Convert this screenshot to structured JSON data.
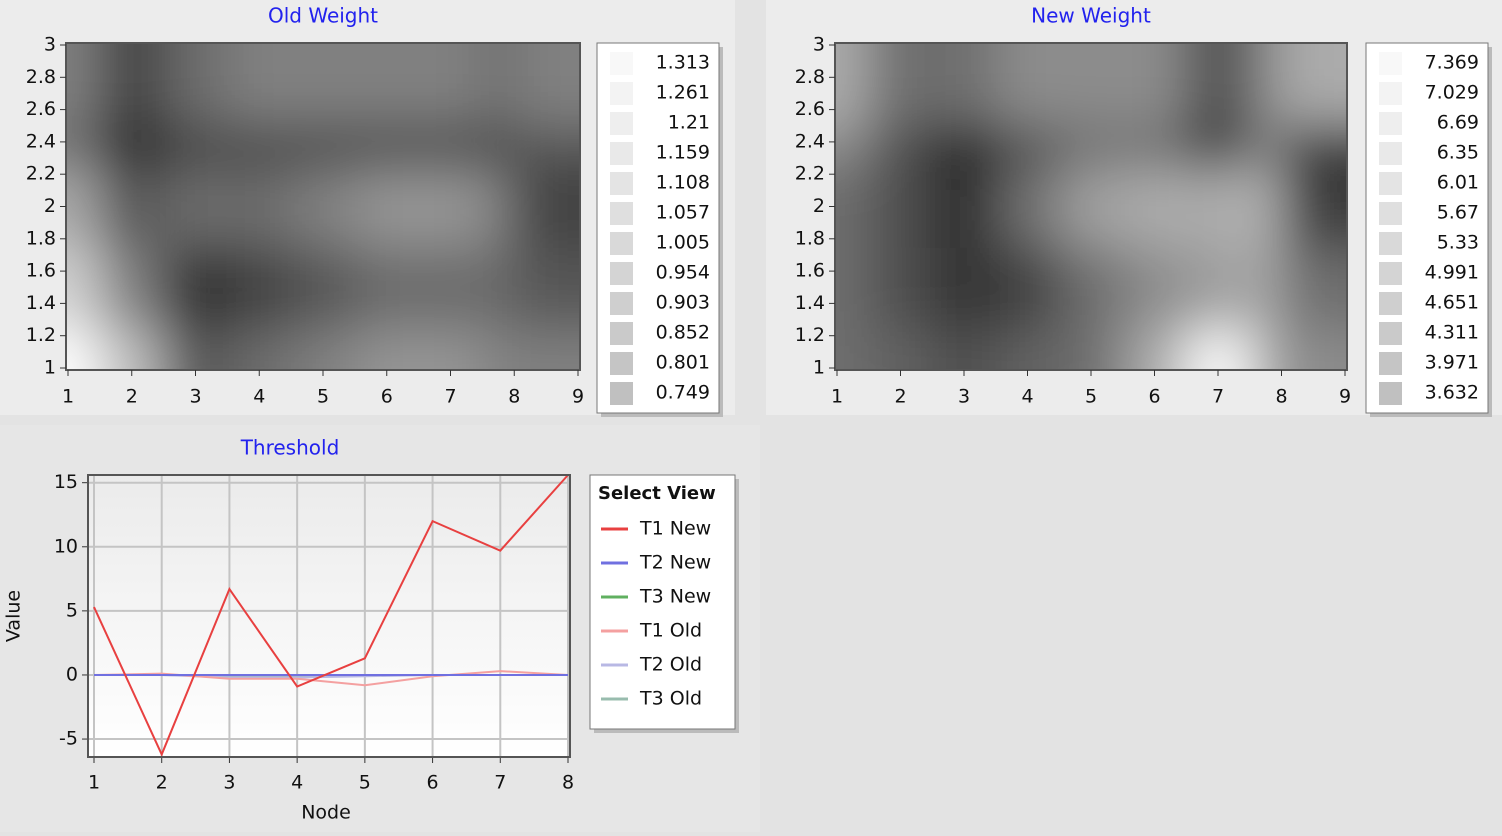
{
  "chart_data": [
    {
      "type": "heatmap",
      "title": "Old Weight",
      "x": [
        1,
        2,
        3,
        4,
        5,
        6,
        7,
        8,
        9
      ],
      "y": [
        1,
        1.5,
        2,
        2.5,
        3
      ],
      "z": [
        [
          1.31,
          1.15,
          0.9,
          0.95,
          1.0,
          1.05,
          1.05,
          1.0,
          1.0
        ],
        [
          1.2,
          1.0,
          0.8,
          0.85,
          0.9,
          0.95,
          0.95,
          0.95,
          0.9
        ],
        [
          1.1,
          0.9,
          0.95,
          0.95,
          1.0,
          1.05,
          1.05,
          1.0,
          0.85
        ],
        [
          0.95,
          0.75,
          0.85,
          0.85,
          0.85,
          0.85,
          0.85,
          0.85,
          0.9
        ],
        [
          1.0,
          0.85,
          0.95,
          1.0,
          1.0,
          1.0,
          1.0,
          0.95,
          1.0
        ]
      ],
      "xlim": [
        1,
        9
      ],
      "ylim": [
        1,
        3
      ],
      "xticks": [
        1,
        2,
        3,
        4,
        5,
        6,
        7,
        8,
        9
      ],
      "yticks": [
        1,
        1.2,
        1.4,
        1.6,
        1.8,
        2,
        2.2,
        2.4,
        2.6,
        2.8,
        3
      ],
      "colors": [
        "#1a1a1a",
        "#ffffff"
      ],
      "legend_levels": [
        1.313,
        1.261,
        1.21,
        1.159,
        1.108,
        1.057,
        1.005,
        0.954,
        0.903,
        0.852,
        0.801,
        0.749
      ]
    },
    {
      "type": "heatmap",
      "title": "New Weight",
      "x": [
        1,
        2,
        3,
        4,
        5,
        6,
        7,
        8,
        9
      ],
      "y": [
        1,
        1.5,
        2,
        2.5,
        3
      ],
      "z": [
        [
          5.0,
          4.8,
          4.5,
          4.8,
          5.0,
          6.0,
          7.3,
          6.0,
          5.5
        ],
        [
          5.0,
          4.5,
          4.0,
          4.3,
          5.0,
          5.5,
          5.8,
          6.0,
          5.0
        ],
        [
          5.0,
          4.5,
          3.9,
          5.0,
          5.8,
          6.0,
          6.0,
          6.2,
          4.2
        ],
        [
          5.5,
          4.5,
          3.7,
          4.5,
          5.0,
          5.0,
          4.0,
          5.5,
          4.0
        ],
        [
          6.0,
          5.0,
          5.0,
          5.5,
          5.5,
          5.5,
          4.5,
          5.5,
          6.0
        ]
      ],
      "xlim": [
        1,
        9
      ],
      "ylim": [
        1,
        3
      ],
      "xticks": [
        1,
        2,
        3,
        4,
        5,
        6,
        7,
        8,
        9
      ],
      "yticks": [
        1,
        1.2,
        1.4,
        1.6,
        1.8,
        2,
        2.2,
        2.4,
        2.6,
        2.8,
        3
      ],
      "colors": [
        "#1a1a1a",
        "#ffffff"
      ],
      "legend_levels": [
        7.369,
        7.029,
        6.69,
        6.35,
        6.01,
        5.67,
        5.33,
        4.991,
        4.651,
        4.311,
        3.971,
        3.632
      ]
    },
    {
      "type": "line",
      "title": "Threshold",
      "x_label": "Node",
      "y_label": "Value",
      "legend_title": "Select View",
      "x": [
        1,
        2,
        3,
        4,
        5,
        6,
        7,
        8
      ],
      "series": [
        {
          "name": "T1 New",
          "color": "#e84040",
          "values": [
            5.3,
            -6.2,
            6.7,
            -0.9,
            1.3,
            12,
            9.7,
            15.6
          ]
        },
        {
          "name": "T2 New",
          "color": "#7070e0",
          "values": [
            0,
            0,
            0,
            0,
            0,
            0,
            0,
            0
          ]
        },
        {
          "name": "T3 New",
          "color": "#60b060",
          "values": [
            0,
            0,
            0,
            0,
            0,
            0,
            0,
            0
          ]
        },
        {
          "name": "T1 Old",
          "color": "#f4a0a0",
          "values": [
            0,
            0.1,
            -0.3,
            -0.3,
            -0.8,
            -0.1,
            0.3,
            0
          ]
        },
        {
          "name": "T2 Old",
          "color": "#b8b8e4",
          "values": [
            0,
            0,
            -0.2,
            -0.2,
            -0.1,
            0,
            0,
            0
          ]
        },
        {
          "name": "T3 Old",
          "color": "#98bcae",
          "values": [
            0,
            0,
            -0.1,
            -0.1,
            0,
            0,
            0,
            0
          ]
        }
      ],
      "xlim": [
        1,
        8
      ],
      "ylim": [
        -6.4,
        15.6
      ],
      "xticks": [
        1,
        2,
        3,
        4,
        5,
        6,
        7,
        8
      ],
      "yticks": [
        -5,
        0,
        5,
        10,
        15
      ],
      "grid": true
    }
  ]
}
